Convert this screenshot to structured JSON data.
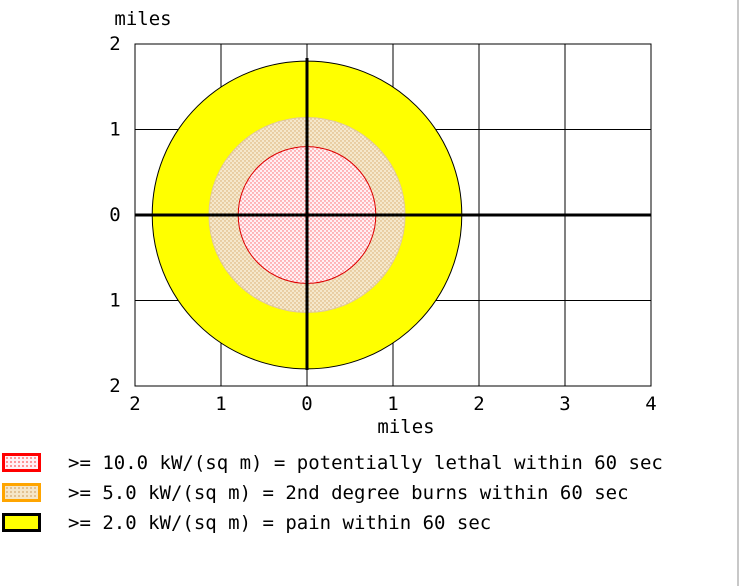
{
  "chart_data": {
    "type": "threat-zone",
    "x_axis": {
      "label": "miles",
      "ticks": [
        -2,
        -1,
        0,
        1,
        2,
        3,
        4
      ],
      "tick_labels": [
        "2",
        "1",
        "0",
        "1",
        "2",
        "3",
        "4"
      ],
      "range": [
        -2,
        4
      ]
    },
    "y_axis": {
      "label": "miles",
      "ticks": [
        2,
        1,
        0,
        -1,
        -2
      ],
      "tick_labels": [
        "2",
        "1",
        "0",
        "1",
        "2"
      ],
      "range": [
        -2,
        2
      ]
    },
    "grid": true,
    "zones": [
      {
        "threshold": ">= 2.0 kW/(sq m)",
        "radius": 1.8,
        "fill": "#ffff00",
        "border": "#000000",
        "pattern": "solid"
      },
      {
        "threshold": ">= 5.0 kW/(sq m)",
        "radius": 1.14,
        "fill": "#f5e6c8",
        "border": "#ffa500",
        "pattern": "dotted"
      },
      {
        "threshold": ">= 10.0 kW/(sq m)",
        "radius": 0.8,
        "fill": "#fff0f5",
        "border": "#ff0000",
        "pattern": "dotted"
      }
    ]
  },
  "legend": [
    {
      "label": ">= 10.0 kW/(sq m) = potentially lethal within 60 sec",
      "fill": "#fff0f5",
      "border": "#ff0000",
      "dot": "#ff4040"
    },
    {
      "label": ">= 5.0 kW/(sq m) = 2nd degree burns within 60 sec",
      "fill": "#f5e6c8",
      "border": "#ffa500",
      "dot": "#d2a060"
    },
    {
      "label": ">= 2.0 kW/(sq m) = pain within 60 sec",
      "fill": "#ffff00",
      "border": "#000000",
      "dot": ""
    }
  ]
}
